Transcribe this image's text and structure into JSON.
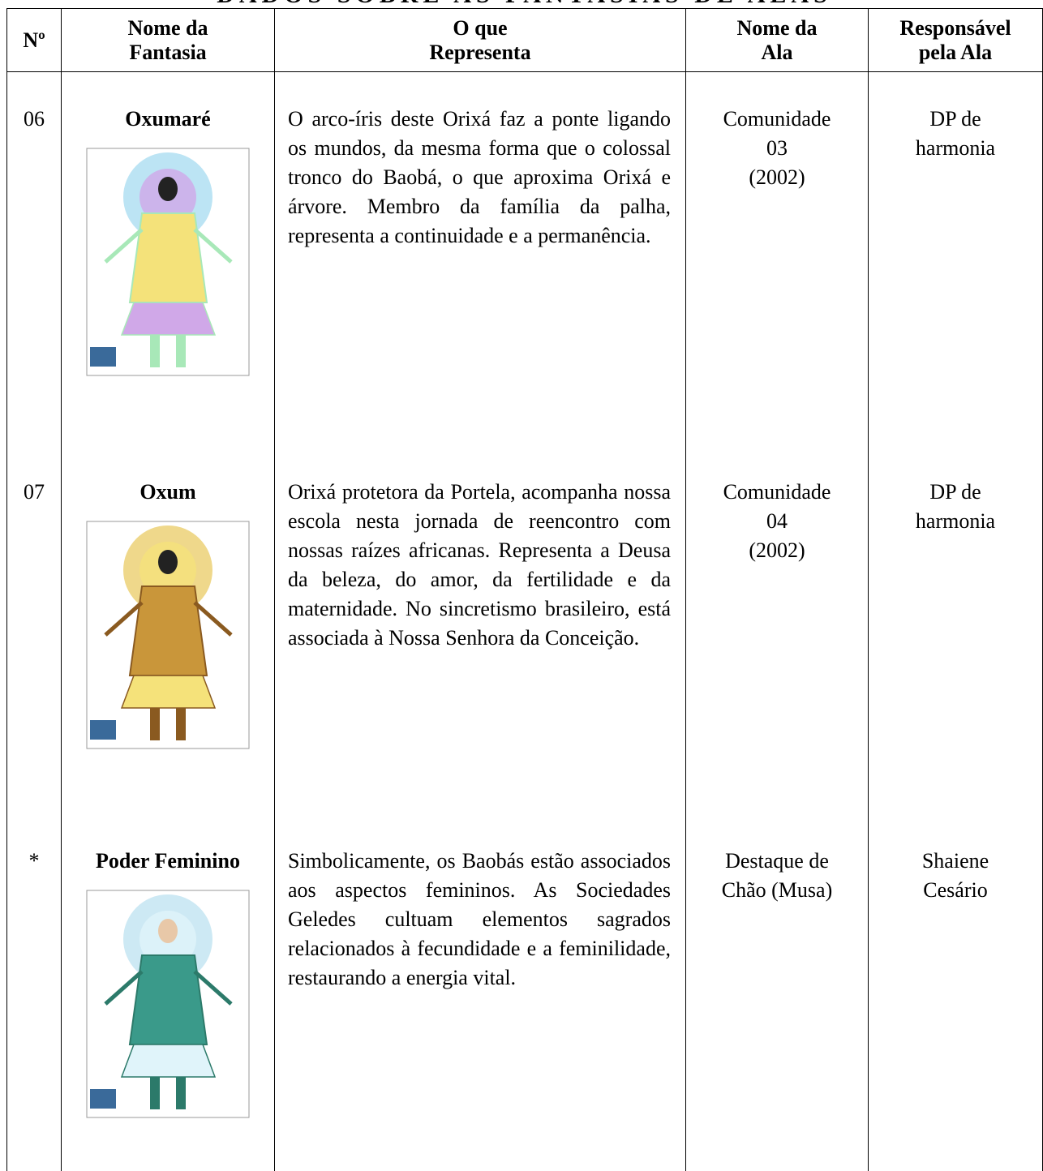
{
  "header": {
    "title": "DADOS SOBRE AS FANTASIAS DE ALAS"
  },
  "table": {
    "columns": [
      [
        "Nº"
      ],
      [
        "Nome da",
        "Fantasia"
      ],
      [
        "O que",
        "Representa"
      ],
      [
        "Nome da",
        "Ala"
      ],
      [
        "Responsável",
        "pela Ala"
      ]
    ],
    "rows": [
      {
        "number": "06",
        "name": "Oxumaré",
        "description": "O arco-íris deste Orixá faz a ponte ligando os mundos, da mesma forma que o colossal tronco do Baobá, o que aproxima Orixá e árvore. Membro da família da palha, representa a continuidade e a permanência.",
        "ala": [
          "Comunidade",
          "03",
          "(2002)"
        ],
        "responsible": [
          "DP de",
          "harmonia"
        ]
      },
      {
        "number": "07",
        "name": "Oxum",
        "description": "Orixá protetora da Portela, acompanha nossa escola nesta jornada de reencontro com nossas raízes africanas. Representa a Deusa da beleza, do amor, da fertilidade e da maternidade. No sincretismo brasileiro, está associada à Nossa Senhora da Conceição.",
        "ala": [
          "Comunidade",
          "04",
          "(2002)"
        ],
        "responsible": [
          "DP de",
          "harmonia"
        ]
      },
      {
        "number": "*",
        "name": "Poder Feminino",
        "description": "Simbolicamente, os Baobás estão associados aos aspectos femininos. As Sociedades Geledes cultuam elementos sagrados relacionados à fecundidade e a feminilidade, restaurando a energia vital.",
        "ala": [
          "Destaque de",
          "Chão (Musa)"
        ],
        "responsible": [
          "Shaiene",
          "Cesário"
        ]
      }
    ]
  }
}
